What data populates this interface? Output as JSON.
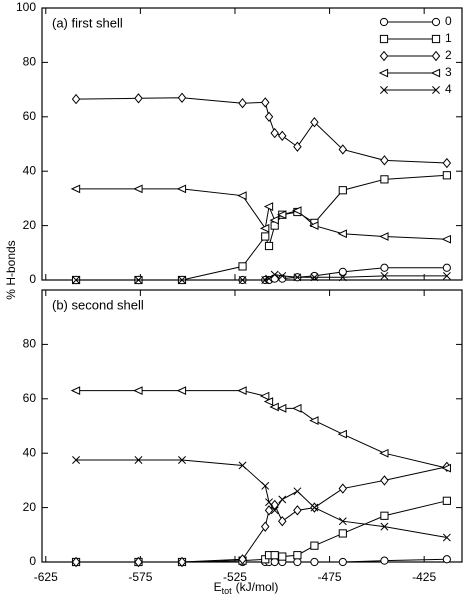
{
  "y_label": "% H-bonds",
  "chart_data": [
    {
      "type": "line",
      "title": "(a) first shell",
      "x": [
        -609,
        -576,
        -553,
        -521,
        -509,
        -507,
        -504,
        -500,
        -492,
        -483,
        -468,
        -446,
        -413
      ],
      "series": [
        {
          "name": "0",
          "marker": "circle",
          "color": "#000000",
          "values": [
            0,
            0,
            0,
            0,
            0,
            0,
            0.5,
            0.5,
            1,
            1.5,
            3,
            4.5,
            4.5
          ]
        },
        {
          "name": "1",
          "marker": "square",
          "color": "#000000",
          "values": [
            0,
            0,
            0,
            5,
            16,
            12.5,
            20,
            24,
            25,
            21,
            33,
            37,
            38.5
          ]
        },
        {
          "name": "2",
          "marker": "diamond",
          "color": "#000000",
          "values": [
            66.5,
            66.8,
            67,
            65,
            65.3,
            60,
            54,
            53,
            49,
            58,
            48,
            44,
            43
          ]
        },
        {
          "name": "3",
          "marker": "triangle-left",
          "color": "#000000",
          "values": [
            33.5,
            33.5,
            33.5,
            31,
            19,
            27,
            22,
            24,
            25.5,
            20,
            17,
            16,
            15
          ]
        },
        {
          "name": "4",
          "marker": "x",
          "color": "#000000",
          "values": [
            0,
            0,
            0,
            0,
            0,
            0.5,
            2,
            1.5,
            1,
            1,
            1,
            1.5,
            1.5
          ]
        }
      ],
      "xlim": [
        -627,
        -405
      ],
      "xticks": [
        -625,
        -575,
        -525,
        -475,
        -425
      ],
      "show_xtick_labels": false,
      "ylim": [
        0,
        100
      ],
      "yticks": [
        0,
        20,
        40,
        60,
        80,
        100
      ],
      "legend": "upper right"
    },
    {
      "type": "line",
      "title": "(b) second shell",
      "x": [
        -609,
        -576,
        -553,
        -521,
        -509,
        -507,
        -504,
        -500,
        -492,
        -483,
        -468,
        -446,
        -413
      ],
      "series": [
        {
          "marker": "circle",
          "color": "#000000",
          "values": [
            0,
            0,
            0,
            0,
            0,
            0,
            0,
            0,
            0,
            0,
            0,
            0.5,
            1
          ]
        },
        {
          "marker": "square",
          "color": "#000000",
          "values": [
            0,
            0,
            0,
            0.5,
            1,
            2.5,
            2.5,
            2,
            2.5,
            6,
            10.5,
            17,
            22.5
          ]
        },
        {
          "marker": "diamond",
          "color": "#000000",
          "values": [
            0,
            0,
            0,
            1,
            13,
            19,
            21,
            15,
            19,
            20,
            27,
            30,
            35
          ]
        },
        {
          "marker": "triangle-left",
          "color": "#000000",
          "values": [
            63,
            63,
            63,
            63,
            61,
            59,
            57,
            56.5,
            56.5,
            52,
            47,
            40,
            34.5
          ]
        },
        {
          "marker": "x",
          "color": "#000000",
          "values": [
            37.5,
            37.5,
            37.5,
            35.5,
            28,
            22,
            19,
            23,
            26,
            20,
            15,
            13,
            9
          ]
        }
      ],
      "xlim": [
        -627,
        -405
      ],
      "xticks": [
        -625,
        -575,
        -525,
        -475,
        -425
      ],
      "show_xtick_labels": true,
      "x_label": "E",
      "x_label_subscript": "tot",
      "x_label_unit": "(kJ/mol)",
      "ylim": [
        0,
        100
      ],
      "yticks": [
        0,
        20,
        40,
        60,
        80
      ]
    }
  ]
}
